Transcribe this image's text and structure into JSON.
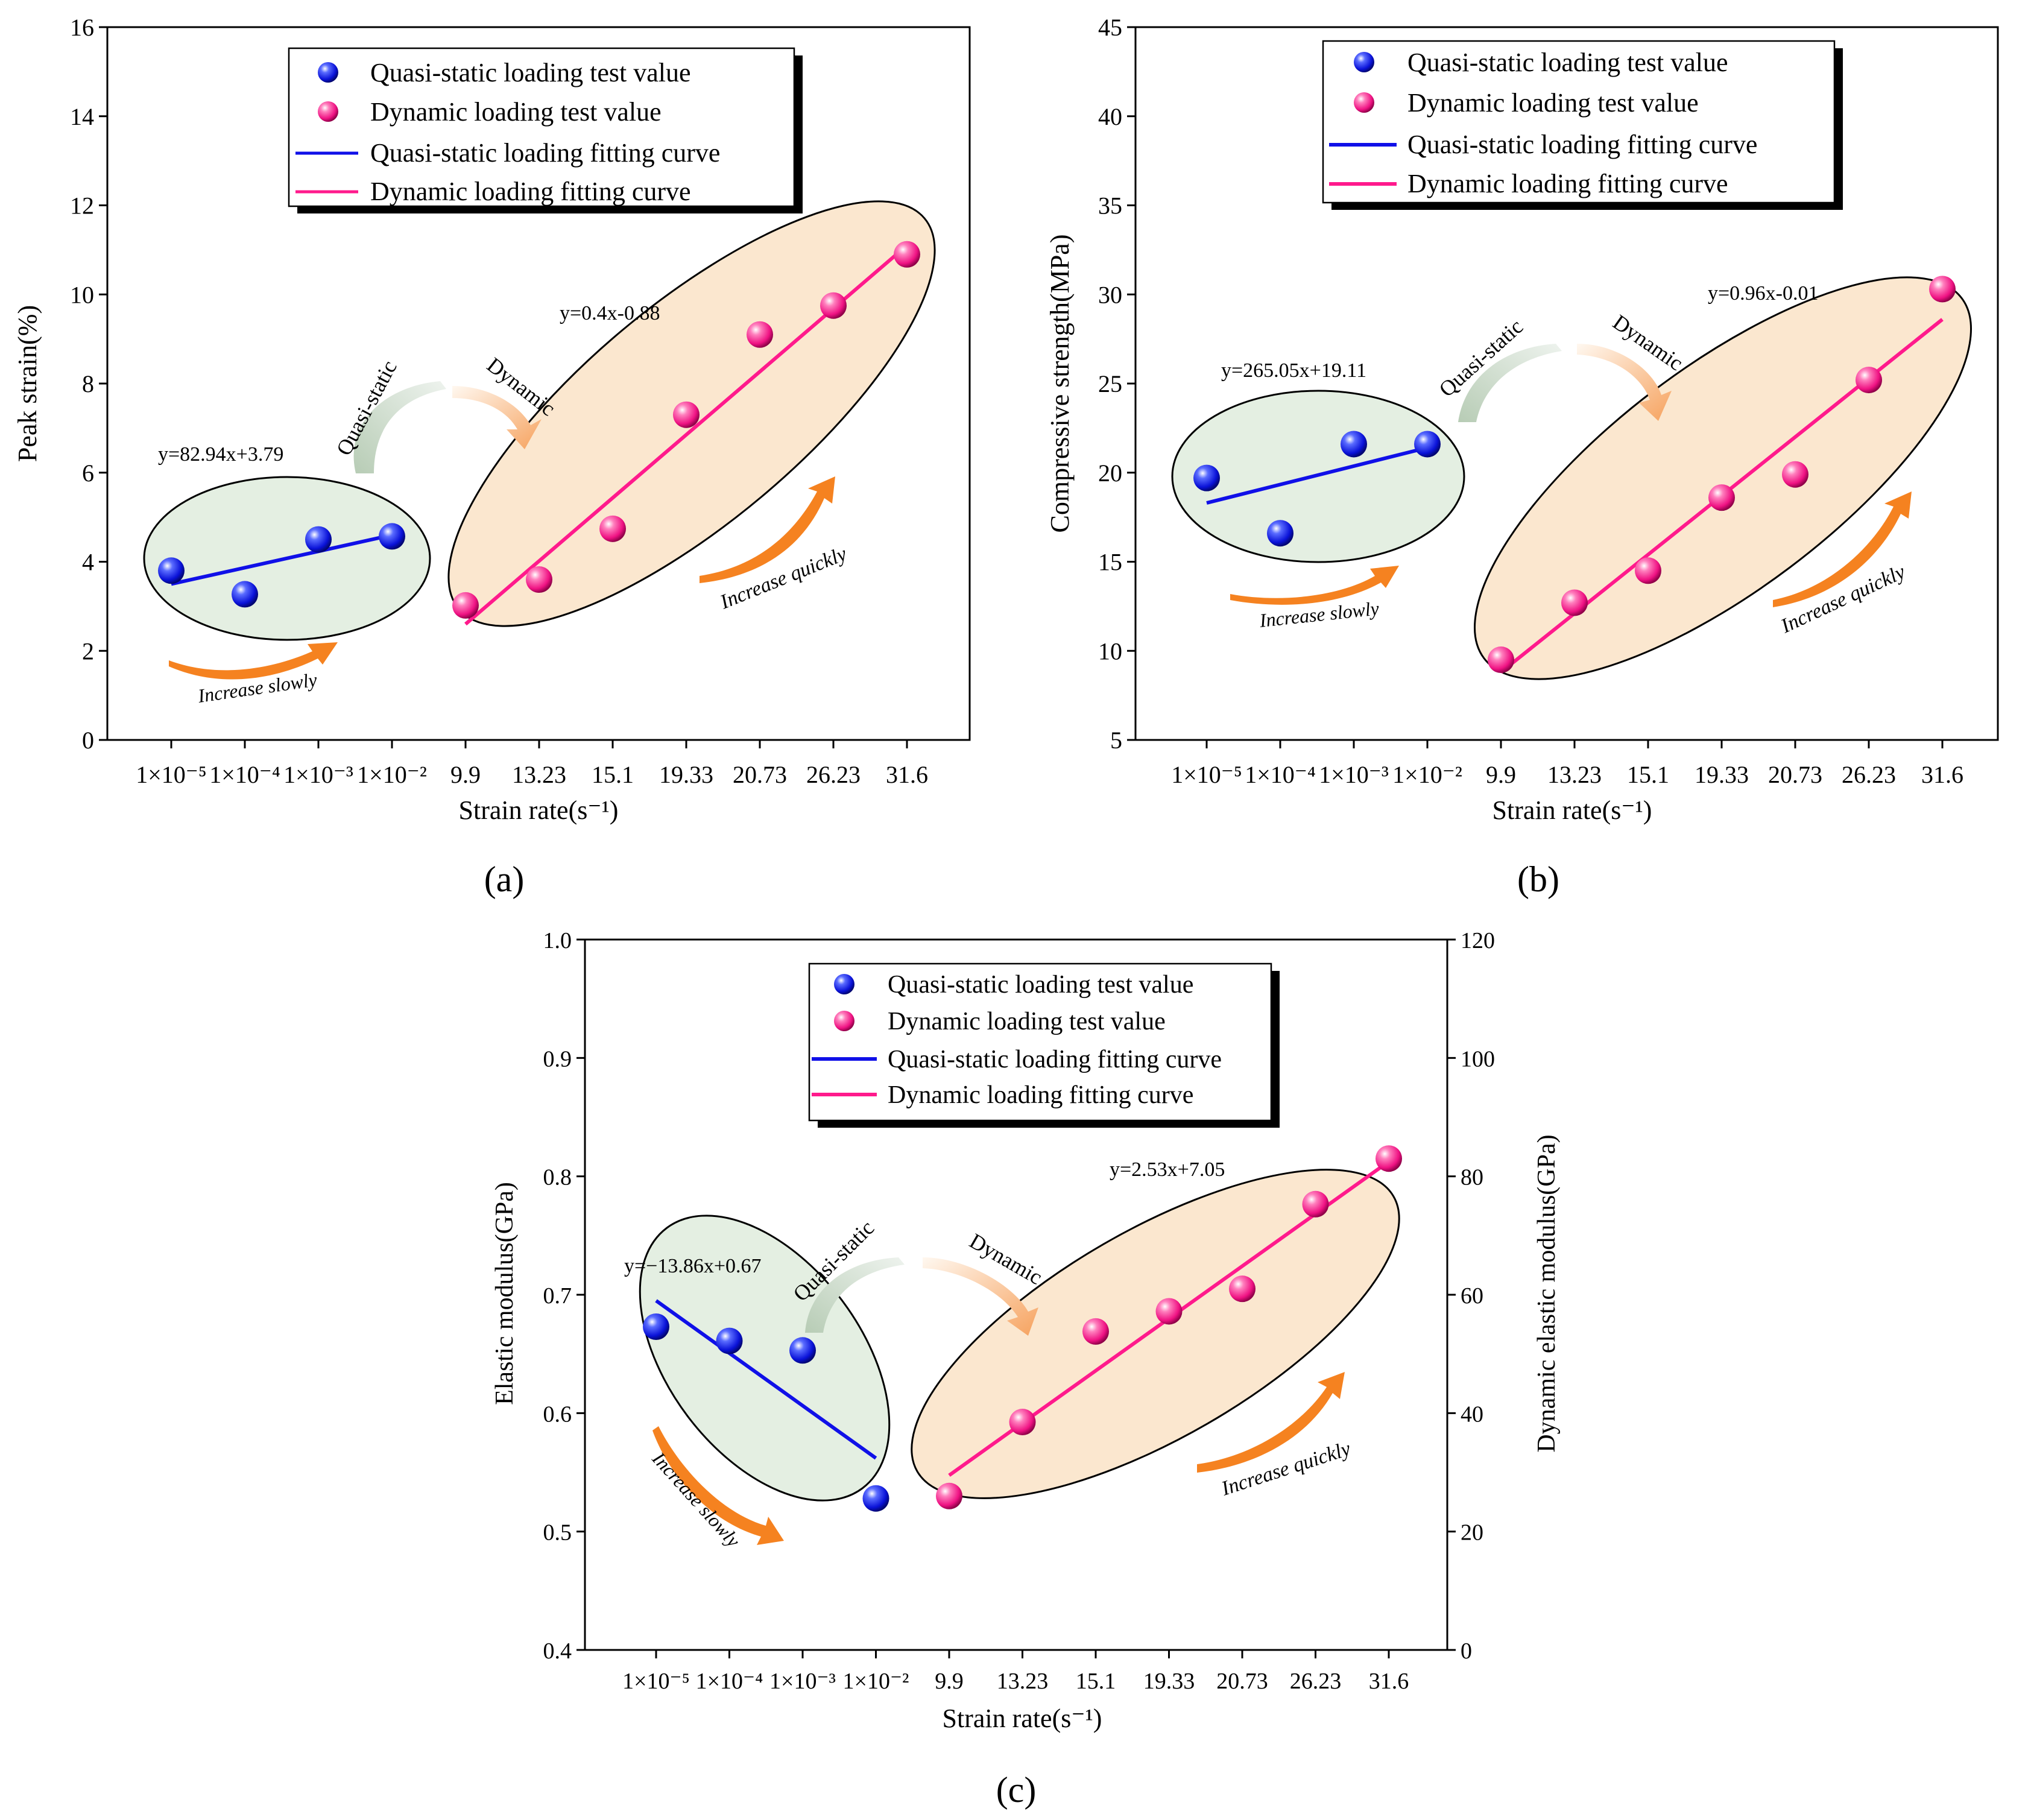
{
  "colors": {
    "quasi": "#1010e8",
    "dynamic": "#ff1a8c",
    "quasi_ellipse": "#e4efe2",
    "dynamic_ellipse": "#fbe7cf",
    "arrow": "#f58220",
    "axis": "#000000"
  },
  "legend": {
    "quasi_points": "Quasi-static loading test value",
    "dynamic_points": "Dynamic loading test value",
    "quasi_fit": "Quasi-static loading fitting curve",
    "dynamic_fit": "Dynamic loading fitting curve"
  },
  "annotations": {
    "quasi_static": "Quasi-static",
    "dynamic": "Dynamic",
    "increase_slowly": "Increase slowly",
    "increase_quickly": "Increase quickly"
  },
  "chart_data": [
    {
      "id": "a",
      "panel_label": "(a)",
      "type": "scatter",
      "xlabel": "Strain rate(s⁻¹)",
      "ylabel": "Peak strain(%)",
      "ylim": [
        0,
        16
      ],
      "yticks": [
        "0",
        "2",
        "4",
        "6",
        "8",
        "10",
        "12",
        "14",
        "16"
      ],
      "categories": [
        "1×10⁻⁵",
        "1×10⁻⁴",
        "1×10⁻³",
        "1×10⁻²",
        "9.9",
        "13.23",
        "15.1",
        "19.33",
        "20.73",
        "26.23",
        "31.6"
      ],
      "series": [
        {
          "name": "Quasi-static loading test value",
          "x_index": [
            0,
            1,
            2,
            3
          ],
          "values": [
            3.8,
            3.27,
            4.5,
            4.57
          ]
        },
        {
          "name": "Dynamic loading test value",
          "x_index": [
            4,
            5,
            6,
            7,
            8,
            9,
            10
          ],
          "values": [
            3.02,
            3.6,
            4.74,
            7.3,
            9.1,
            9.75,
            10.9
          ]
        }
      ],
      "fits": {
        "quasi": {
          "equation": "y=82.94x+3.79",
          "from": [
            0,
            3.5
          ],
          "to": [
            3,
            4.6
          ]
        },
        "dynamic": {
          "equation": "y=0.4x-0.88",
          "from": [
            4,
            2.6
          ],
          "to": [
            10,
            11.1
          ]
        }
      }
    },
    {
      "id": "b",
      "panel_label": "(b)",
      "type": "scatter",
      "xlabel": "Strain rate(s⁻¹)",
      "ylabel": "Compressive strength(MPa)",
      "ylim": [
        5,
        45
      ],
      "yticks": [
        "5",
        "10",
        "15",
        "20",
        "25",
        "30",
        "35",
        "40",
        "45"
      ],
      "categories": [
        "1×10⁻⁵",
        "1×10⁻⁴",
        "1×10⁻³",
        "1×10⁻²",
        "9.9",
        "13.23",
        "15.1",
        "19.33",
        "20.73",
        "26.23",
        "31.6"
      ],
      "series": [
        {
          "name": "Quasi-static loading test value",
          "x_index": [
            0,
            1,
            2,
            3
          ],
          "values": [
            19.7,
            16.6,
            21.6,
            21.6
          ]
        },
        {
          "name": "Dynamic loading test value",
          "x_index": [
            4,
            5,
            6,
            7,
            8,
            9,
            10
          ],
          "values": [
            9.5,
            12.7,
            14.5,
            18.6,
            19.9,
            25.2,
            30.3
          ]
        }
      ],
      "fits": {
        "quasi": {
          "equation": "y=265.05x+19.11",
          "from": [
            0,
            18.3
          ],
          "to": [
            3,
            21.4
          ]
        },
        "dynamic": {
          "equation": "y=0.96x-0.01",
          "from": [
            4,
            8.8
          ],
          "to": [
            10,
            28.6
          ]
        }
      }
    },
    {
      "id": "c",
      "panel_label": "(c)",
      "type": "scatter",
      "xlabel": "Strain rate(s⁻¹)",
      "ylabel": "Elastic modulus(GPa)",
      "ylabel_right": "Dynamic elastic modulus(GPa)",
      "ylim": [
        0.4,
        1.0
      ],
      "ylim_right": [
        0,
        120
      ],
      "yticks": [
        "0.4",
        "0.5",
        "0.6",
        "0.7",
        "0.8",
        "0.9",
        "1.0"
      ],
      "yticks_right": [
        "0",
        "20",
        "40",
        "60",
        "80",
        "100",
        "120"
      ],
      "categories": [
        "1×10⁻⁵",
        "1×10⁻⁴",
        "1×10⁻³",
        "1×10⁻²",
        "9.9",
        "13.23",
        "15.1",
        "19.33",
        "20.73",
        "26.23",
        "31.6"
      ],
      "series": [
        {
          "name": "Quasi-static loading test value",
          "axis": "left",
          "x_index": [
            0,
            1,
            2,
            3
          ],
          "values": [
            0.673,
            0.661,
            0.653,
            0.528
          ]
        },
        {
          "name": "Dynamic loading test value",
          "axis": "right",
          "x_index": [
            4,
            5,
            6,
            7,
            8,
            9,
            10
          ],
          "values": [
            26,
            38.5,
            53.8,
            57.2,
            61,
            75.3,
            83
          ]
        }
      ],
      "fits": {
        "quasi": {
          "equation": "y=−13.86x+0.67",
          "axis": "left",
          "from": [
            0,
            0.695
          ],
          "to": [
            3,
            0.562
          ]
        },
        "dynamic": {
          "equation": "y=2.53x+7.05",
          "axis": "right",
          "from": [
            4,
            29.5
          ],
          "to": [
            10,
            82.5
          ]
        }
      }
    }
  ]
}
